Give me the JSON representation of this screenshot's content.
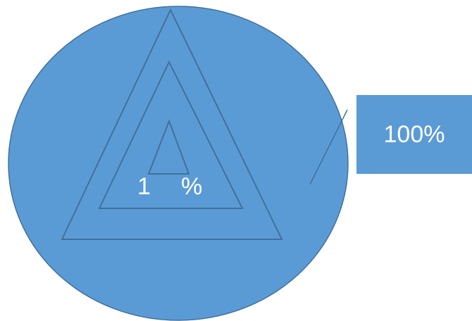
{
  "diagram": {
    "inner_label_number": "1",
    "inner_label_unit": "%",
    "callout_label": "100%"
  },
  "colors": {
    "fill": "#5b9bd5",
    "stroke": "#41719c",
    "text": "#ffffff"
  }
}
